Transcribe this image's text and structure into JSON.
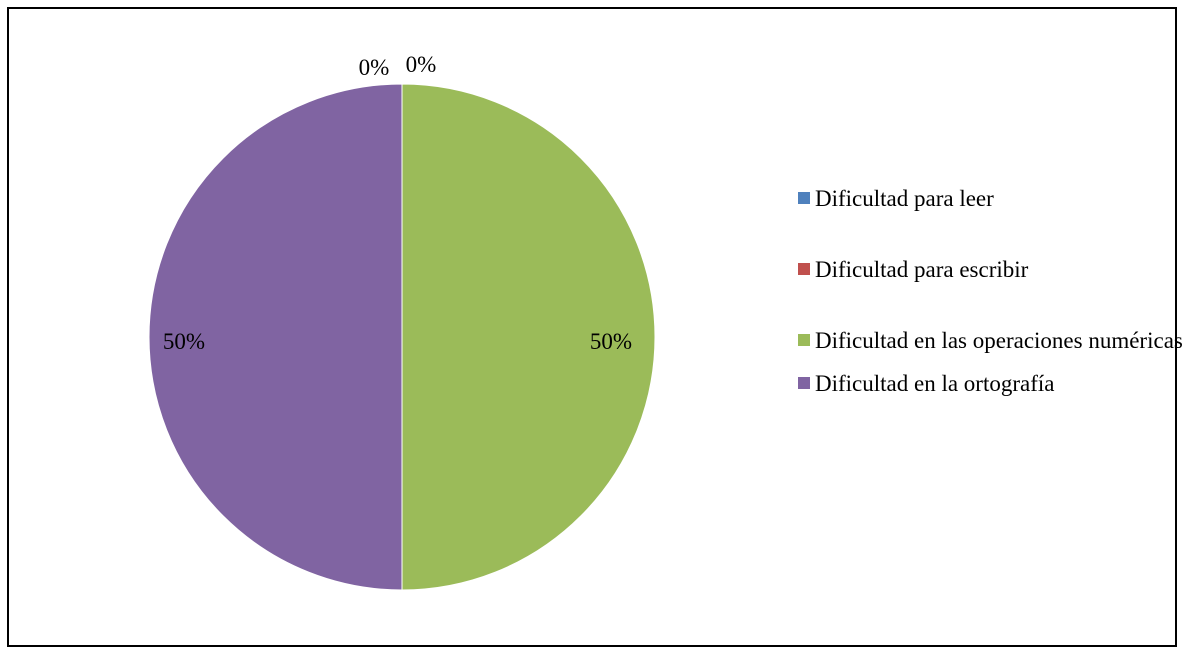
{
  "chart_data": {
    "type": "pie",
    "categories": [
      "Dificultad para leer",
      "Dificultad para escribir",
      "Dificultad en las operaciones numéricas",
      "Dificultad en la ortografía"
    ],
    "values": [
      0,
      0,
      50,
      50
    ],
    "data_labels": [
      "0%",
      "0%",
      "50%",
      "50%"
    ],
    "colors": [
      "#4F81BD",
      "#C0504D",
      "#9BBB59",
      "#8064A2"
    ],
    "title": "",
    "legend": "right"
  }
}
